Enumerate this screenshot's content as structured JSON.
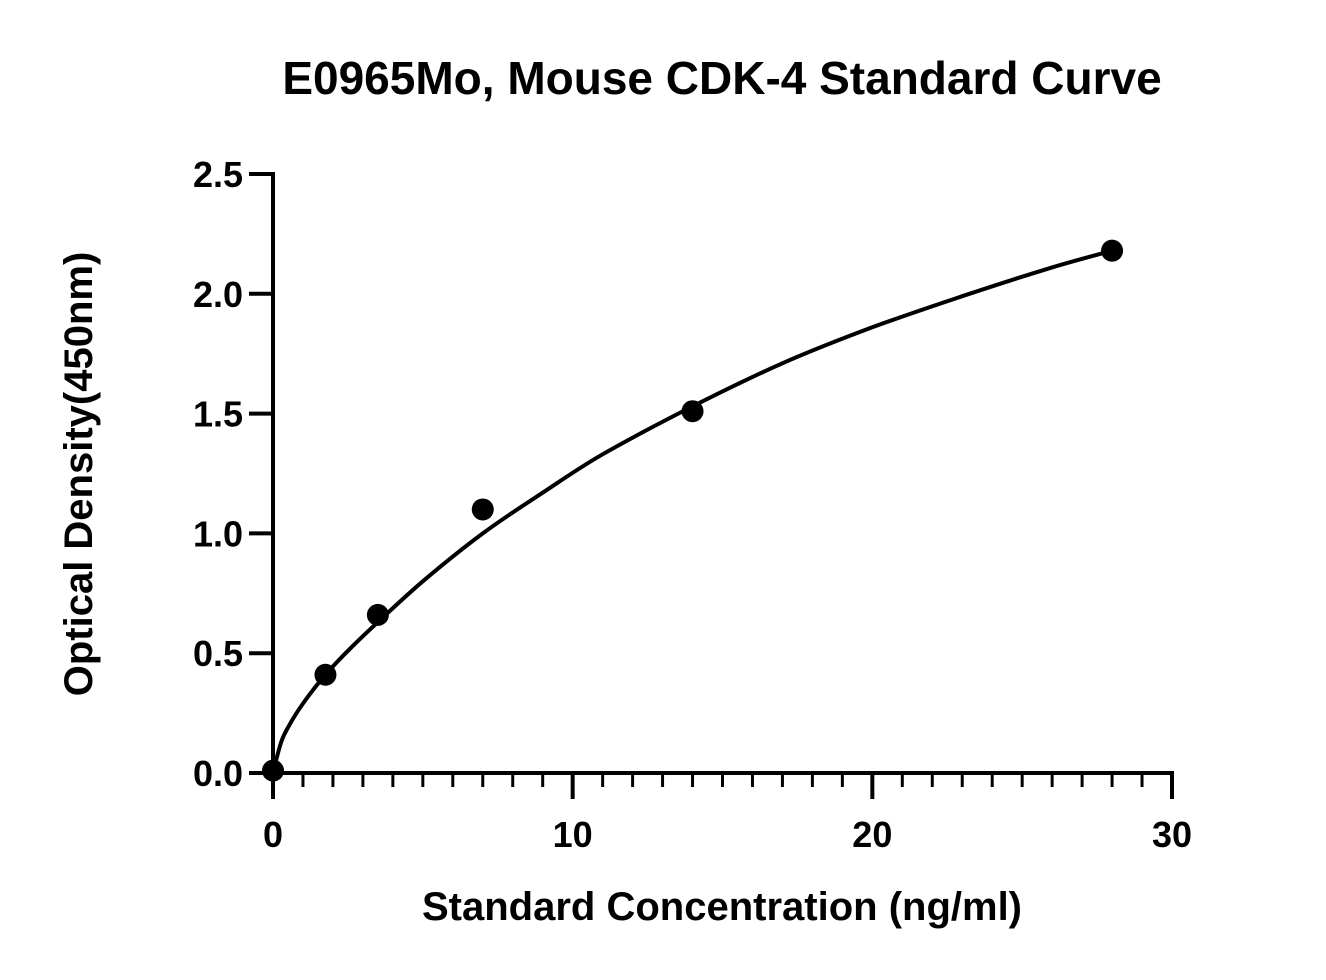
{
  "chart_data": {
    "type": "scatter",
    "title": "E0965Mo, Mouse CDK-4 Standard Curve",
    "xlabel": "Standard Concentration (ng/ml)",
    "ylabel": "Optical Density(450nm)",
    "xlim": [
      0,
      30
    ],
    "ylim": [
      0,
      2.5
    ],
    "x_ticks": [
      0,
      10,
      20,
      30
    ],
    "x_tick_labels": [
      "0",
      "10",
      "20",
      "30"
    ],
    "x_minor_step": 1,
    "y_ticks": [
      0,
      0.5,
      1.0,
      1.5,
      2.0,
      2.5
    ],
    "y_tick_labels": [
      "0.0",
      "0.5",
      "1.0",
      "1.5",
      "2.0",
      "2.5"
    ],
    "grid": false,
    "legend": "none",
    "series": [
      {
        "x": [
          0,
          1.75,
          3.5,
          7,
          14,
          28
        ],
        "y": [
          0.01,
          0.41,
          0.66,
          1.1,
          1.51,
          2.18
        ],
        "marker": "circle",
        "color": "#000000"
      }
    ],
    "fit_curve": {
      "x": [
        0,
        0.25,
        0.5,
        1,
        1.75,
        2.5,
        3.5,
        5,
        7,
        9,
        11,
        14,
        17,
        20,
        23,
        26,
        28
      ],
      "y": [
        0,
        0.12,
        0.19,
        0.29,
        0.41,
        0.51,
        0.63,
        0.8,
        1.0,
        1.17,
        1.33,
        1.53,
        1.71,
        1.86,
        1.99,
        2.11,
        2.18
      ],
      "color": "#000000"
    }
  }
}
